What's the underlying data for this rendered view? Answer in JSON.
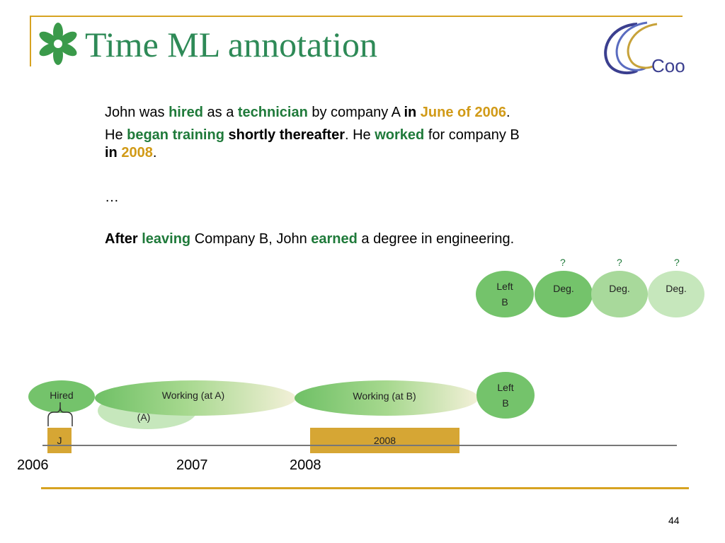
{
  "header": {
    "title": "Time ML annotation",
    "logo_text": "Coo"
  },
  "text": {
    "l1": {
      "a": "John was ",
      "b": "hired",
      "c": " as a ",
      "d": "technician",
      "e": " by company A ",
      "f": "in",
      "g": " ",
      "h": "June of 2006",
      "i": "."
    },
    "l2": {
      "a": "He ",
      "b": "began training",
      "c": " ",
      "d": "shortly thereafter",
      "e": ". He ",
      "f": "worked",
      "g": " for company B"
    },
    "l3": {
      "a": "in",
      "b": " ",
      "c": "2008",
      "d": "."
    },
    "ellipsis": "…",
    "l4": {
      "a": "After",
      "b": " ",
      "c": "leaving",
      "d": " Company B, John ",
      "e": "earned",
      "f": " a degree in engineering."
    }
  },
  "upper_events": {
    "left_b": "Left\nB",
    "deg_1": "Deg.",
    "deg_2": "Deg.",
    "deg_3": "Deg.",
    "q1": "?",
    "q2": "?",
    "q3": "?"
  },
  "timeline": {
    "hired": "Hired",
    "training": "Training\n(A)",
    "working_a": "Working (at A)",
    "working_b": "Working (at B)",
    "left_b": "Left\nB",
    "bar_j": "J",
    "bar_2008": "2008",
    "years": [
      "2006",
      "2007",
      "2008"
    ]
  },
  "footer": {
    "page_number": "44"
  },
  "colors": {
    "accent": "#d7a321",
    "title": "#2e8a57",
    "green_dark": "#1f7a3a",
    "orange": "#d19a17",
    "ellipse": "#74c36b",
    "ellipse_light": "#a8d99b",
    "bar": "#d6a634"
  }
}
